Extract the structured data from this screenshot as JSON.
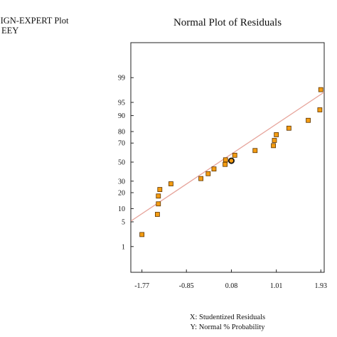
{
  "header": {
    "line1": "ESIGN-EXPERT Plot",
    "line2": "EEY"
  },
  "chart_data": {
    "type": "scatter",
    "title": "Normal Plot of Residuals",
    "xlabel": "X: Studentized Residuals",
    "ylabel": "Y: Normal % Probability",
    "x_ticks": [
      -1.77,
      -0.85,
      0.08,
      1.01,
      1.93
    ],
    "x_tick_labels": [
      "-1.77",
      "-0.85",
      "0.08",
      "1.01",
      "1.93"
    ],
    "y_ticks": [
      1,
      5,
      10,
      20,
      30,
      50,
      70,
      80,
      90,
      95,
      99
    ],
    "y_tick_labels": [
      "1",
      "5",
      "10",
      "20",
      "30",
      "50",
      "70",
      "80",
      "90",
      "95",
      "99"
    ],
    "xlim": [
      -2.0,
      2.0
    ],
    "y_scale": "normal-probability",
    "ylim": [
      0.12,
      99.95
    ],
    "grid": false,
    "fit_line": {
      "x": [
        -2.0,
        2.0
      ],
      "y": [
        5.2,
        97.3
      ],
      "color": "#e6a39a"
    },
    "highlighted_point": {
      "x": 0.08,
      "y": 51.5
    },
    "marker_color": "#f39c12",
    "points": [
      {
        "x": -1.77,
        "y": 2.3
      },
      {
        "x": -1.45,
        "y": 7.5
      },
      {
        "x": -1.43,
        "y": 12.5
      },
      {
        "x": -1.43,
        "y": 17.5
      },
      {
        "x": -1.4,
        "y": 22.5
      },
      {
        "x": -1.17,
        "y": 27.5
      },
      {
        "x": -0.55,
        "y": 32.5
      },
      {
        "x": -0.4,
        "y": 37.5
      },
      {
        "x": -0.28,
        "y": 42.5
      },
      {
        "x": -0.05,
        "y": 47.5
      },
      {
        "x": -0.04,
        "y": 52.5
      },
      {
        "x": 0.15,
        "y": 57.5
      },
      {
        "x": 0.57,
        "y": 62.5
      },
      {
        "x": 0.95,
        "y": 67.5
      },
      {
        "x": 0.97,
        "y": 72.5
      },
      {
        "x": 1.01,
        "y": 77.5
      },
      {
        "x": 1.27,
        "y": 82.5
      },
      {
        "x": 1.67,
        "y": 87.5
      },
      {
        "x": 1.91,
        "y": 92.5
      },
      {
        "x": 1.93,
        "y": 97.7
      }
    ]
  }
}
